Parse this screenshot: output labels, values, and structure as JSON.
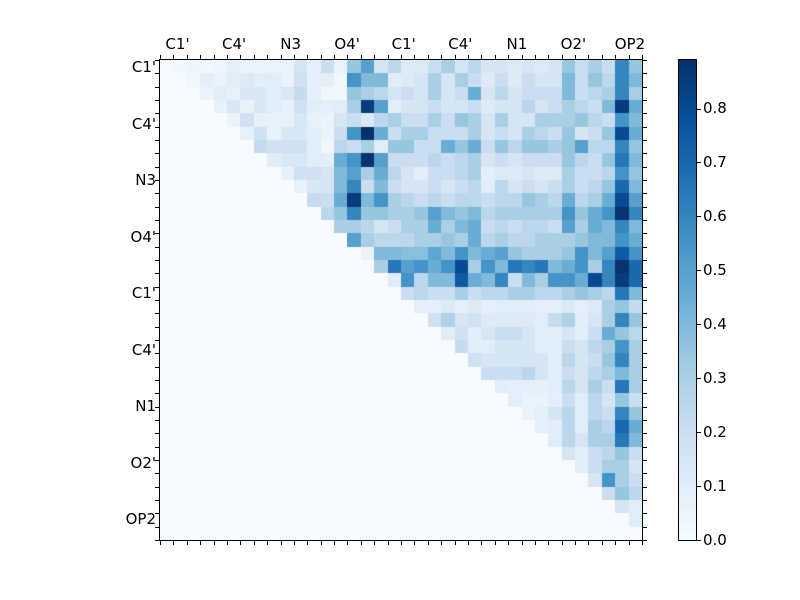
{
  "figure": {
    "background": "#ffffff",
    "kind": "matplotlib-style upper-triangular correlation heatmap with colorbar"
  },
  "chart_data": {
    "type": "heatmap",
    "title": "",
    "x_labels": [
      "C1'",
      "C4'",
      "N3",
      "O4'",
      "C1'",
      "C4'",
      "N1",
      "O2'",
      "OP2"
    ],
    "y_labels": [
      "C1'",
      "C4'",
      "N3",
      "O4'",
      "C1'",
      "C4'",
      "N1",
      "O2'",
      "OP2"
    ],
    "n_cells": 36,
    "cells_per_label": 4,
    "matrix_layout": "upper-triangular",
    "vmin": 0.0,
    "vmax": 0.89,
    "grid": false,
    "colormap": {
      "name": "Blues",
      "stops": [
        "#f7fbff",
        "#deebf7",
        "#c6dbef",
        "#9ecae1",
        "#6baed6",
        "#4292c6",
        "#2171b5",
        "#08519c",
        "#08306b"
      ]
    },
    "colorbar": {
      "position": "right",
      "tick_labels": [
        "0.0",
        "0.1",
        "0.2",
        "0.3",
        "0.4",
        "0.5",
        "0.6",
        "0.7",
        "0.8"
      ],
      "tick_values": [
        0.0,
        0.1,
        0.2,
        0.3,
        0.4,
        0.5,
        0.6,
        0.7,
        0.8
      ]
    },
    "values": [
      [
        0,
        0.02,
        0.04,
        0.03,
        0.04,
        0.08,
        0.06,
        0.05,
        0.06,
        0.06,
        0.15,
        0.08,
        0.2,
        0.05,
        0.35,
        0.5,
        0.15,
        0.25,
        0.12,
        0.12,
        0.2,
        0.3,
        0.15,
        0.25,
        0.15,
        0.15,
        0.12,
        0.15,
        0.12,
        0.15,
        0.35,
        0.2,
        0.3,
        0.2,
        0.6,
        0.35
      ],
      [
        0,
        0,
        0.03,
        0.08,
        0.06,
        0.1,
        0.12,
        0.1,
        0.1,
        0.06,
        0.18,
        0.08,
        0.08,
        0.03,
        0.55,
        0.4,
        0.4,
        0.1,
        0.12,
        0.15,
        0.3,
        0.15,
        0.3,
        0.2,
        0.12,
        0.2,
        0.12,
        0.2,
        0.15,
        0.15,
        0.4,
        0.2,
        0.35,
        0.25,
        0.6,
        0.4
      ],
      [
        0,
        0,
        0,
        0.05,
        0.1,
        0.07,
        0.14,
        0.14,
        0.1,
        0.14,
        0.22,
        0.08,
        0.03,
        0.03,
        0.35,
        0.3,
        0.25,
        0.15,
        0.2,
        0.15,
        0.3,
        0.15,
        0.2,
        0.45,
        0.15,
        0.25,
        0.15,
        0.2,
        0.2,
        0.2,
        0.4,
        0.2,
        0.25,
        0.3,
        0.6,
        0.3
      ],
      [
        0,
        0,
        0,
        0,
        0.07,
        0.14,
        0.07,
        0.14,
        0.1,
        0.07,
        0.18,
        0.1,
        0.08,
        0.1,
        0.3,
        0.85,
        0.5,
        0.1,
        0.15,
        0.15,
        0.2,
        0.15,
        0.15,
        0.2,
        0.12,
        0.15,
        0.15,
        0.25,
        0.15,
        0.2,
        0.3,
        0.25,
        0.2,
        0.4,
        0.85,
        0.45
      ],
      [
        0,
        0,
        0,
        0,
        0,
        0.05,
        0.18,
        0.07,
        0.07,
        0.07,
        0.14,
        0.07,
        0.05,
        0.15,
        0.2,
        0.12,
        0.25,
        0.3,
        0.2,
        0.2,
        0.3,
        0.2,
        0.35,
        0.3,
        0.15,
        0.3,
        0.15,
        0.15,
        0.3,
        0.3,
        0.3,
        0.35,
        0.25,
        0.2,
        0.55,
        0.4
      ],
      [
        0,
        0,
        0,
        0,
        0,
        0,
        0.07,
        0.18,
        0.07,
        0.14,
        0.14,
        0.1,
        0.05,
        0.2,
        0.55,
        0.9,
        0.45,
        0.2,
        0.3,
        0.3,
        0.2,
        0.2,
        0.2,
        0.3,
        0.15,
        0.2,
        0.15,
        0.3,
        0.25,
        0.2,
        0.35,
        0.15,
        0.2,
        0.35,
        0.8,
        0.45
      ],
      [
        0,
        0,
        0,
        0,
        0,
        0,
        0,
        0.22,
        0.18,
        0.18,
        0.18,
        0.1,
        0.03,
        0.25,
        0.2,
        0.3,
        0.1,
        0.35,
        0.35,
        0.2,
        0.2,
        0.45,
        0.35,
        0.45,
        0.2,
        0.35,
        0.25,
        0.35,
        0.35,
        0.3,
        0.35,
        0.5,
        0.25,
        0.25,
        0.6,
        0.35
      ],
      [
        0,
        0,
        0,
        0,
        0,
        0,
        0,
        0,
        0.1,
        0.14,
        0.14,
        0.1,
        0.08,
        0.45,
        0.55,
        0.88,
        0.5,
        0.2,
        0.2,
        0.2,
        0.25,
        0.2,
        0.25,
        0.3,
        0.15,
        0.2,
        0.15,
        0.2,
        0.2,
        0.2,
        0.35,
        0.25,
        0.2,
        0.35,
        0.65,
        0.4
      ],
      [
        0,
        0,
        0,
        0,
        0,
        0,
        0,
        0,
        0,
        0.07,
        0.18,
        0.18,
        0.15,
        0.4,
        0.5,
        0.3,
        0.45,
        0.25,
        0.15,
        0.1,
        0.2,
        0.2,
        0.25,
        0.3,
        0.1,
        0.12,
        0.12,
        0.15,
        0.12,
        0.12,
        0.3,
        0.2,
        0.2,
        0.25,
        0.55,
        0.35
      ],
      [
        0,
        0,
        0,
        0,
        0,
        0,
        0,
        0,
        0,
        0,
        0.07,
        0.14,
        0.15,
        0.4,
        0.6,
        0.2,
        0.4,
        0.2,
        0.15,
        0.15,
        0.2,
        0.15,
        0.2,
        0.25,
        0.1,
        0.25,
        0.15,
        0.2,
        0.15,
        0.2,
        0.3,
        0.2,
        0.25,
        0.35,
        0.7,
        0.4
      ],
      [
        0,
        0,
        0,
        0,
        0,
        0,
        0,
        0,
        0,
        0,
        0,
        0.22,
        0.2,
        0.45,
        0.85,
        0.4,
        0.55,
        0.3,
        0.25,
        0.2,
        0.25,
        0.2,
        0.25,
        0.25,
        0.2,
        0.25,
        0.25,
        0.35,
        0.3,
        0.25,
        0.45,
        0.25,
        0.3,
        0.45,
        0.8,
        0.5
      ],
      [
        0,
        0,
        0,
        0,
        0,
        0,
        0,
        0,
        0,
        0,
        0,
        0,
        0.25,
        0.35,
        0.6,
        0.35,
        0.35,
        0.3,
        0.3,
        0.35,
        0.5,
        0.4,
        0.35,
        0.4,
        0.25,
        0.3,
        0.3,
        0.3,
        0.3,
        0.3,
        0.55,
        0.35,
        0.45,
        0.55,
        0.88,
        0.6
      ],
      [
        0,
        0,
        0,
        0,
        0,
        0,
        0,
        0,
        0,
        0,
        0,
        0,
        0,
        0.3,
        0.3,
        0.25,
        0.15,
        0.2,
        0.3,
        0.3,
        0.45,
        0.3,
        0.4,
        0.45,
        0.2,
        0.25,
        0.2,
        0.25,
        0.25,
        0.2,
        0.5,
        0.3,
        0.45,
        0.4,
        0.6,
        0.4
      ],
      [
        0,
        0,
        0,
        0,
        0,
        0,
        0,
        0,
        0,
        0,
        0,
        0,
        0,
        0,
        0.5,
        0.3,
        0.25,
        0.25,
        0.25,
        0.3,
        0.3,
        0.35,
        0.3,
        0.45,
        0.25,
        0.3,
        0.25,
        0.25,
        0.3,
        0.3,
        0.3,
        0.35,
        0.4,
        0.4,
        0.55,
        0.45
      ],
      [
        0,
        0,
        0,
        0,
        0,
        0,
        0,
        0,
        0,
        0,
        0,
        0,
        0,
        0,
        0,
        0.05,
        0.4,
        0.4,
        0.38,
        0.38,
        0.48,
        0.4,
        0.55,
        0.4,
        0.45,
        0.5,
        0.35,
        0.3,
        0.3,
        0.3,
        0.35,
        0.55,
        0.4,
        0.5,
        0.75,
        0.55
      ],
      [
        0,
        0,
        0,
        0,
        0,
        0,
        0,
        0,
        0,
        0,
        0,
        0,
        0,
        0,
        0,
        0,
        0.3,
        0.65,
        0.5,
        0.55,
        0.45,
        0.55,
        0.8,
        0.3,
        0.55,
        0.4,
        0.65,
        0.6,
        0.65,
        0.4,
        0.45,
        0.55,
        0.3,
        0.6,
        0.88,
        0.7
      ],
      [
        0,
        0,
        0,
        0,
        0,
        0,
        0,
        0,
        0,
        0,
        0,
        0,
        0,
        0,
        0,
        0,
        0,
        0.1,
        0.55,
        0.25,
        0.4,
        0.4,
        0.75,
        0.45,
        0.4,
        0.6,
        0.2,
        0.4,
        0.3,
        0.55,
        0.55,
        0.45,
        0.8,
        0.6,
        0.85,
        0.7
      ],
      [
        0,
        0,
        0,
        0,
        0,
        0,
        0,
        0,
        0,
        0,
        0,
        0,
        0,
        0,
        0,
        0,
        0,
        0,
        0.2,
        0.25,
        0.2,
        0.2,
        0.3,
        0.2,
        0.25,
        0.25,
        0.3,
        0.3,
        0.25,
        0.25,
        0.3,
        0.35,
        0.3,
        0.25,
        0.65,
        0.4
      ],
      [
        0,
        0,
        0,
        0,
        0,
        0,
        0,
        0,
        0,
        0,
        0,
        0,
        0,
        0,
        0,
        0,
        0,
        0,
        0,
        0.08,
        0.08,
        0.12,
        0.08,
        0.12,
        0.08,
        0.1,
        0.1,
        0.1,
        0.08,
        0.08,
        0.12,
        0.08,
        0.12,
        0.3,
        0.35,
        0.22
      ],
      [
        0,
        0,
        0,
        0,
        0,
        0,
        0,
        0,
        0,
        0,
        0,
        0,
        0,
        0,
        0,
        0,
        0,
        0,
        0,
        0,
        0.18,
        0.28,
        0.15,
        0.18,
        0.12,
        0.12,
        0.12,
        0.12,
        0.1,
        0.22,
        0.28,
        0.1,
        0.15,
        0.3,
        0.6,
        0.35
      ],
      [
        0,
        0,
        0,
        0,
        0,
        0,
        0,
        0,
        0,
        0,
        0,
        0,
        0,
        0,
        0,
        0,
        0,
        0,
        0,
        0,
        0,
        0.1,
        0.18,
        0.1,
        0.15,
        0.2,
        0.2,
        0.15,
        0.1,
        0.1,
        0.15,
        0.1,
        0.2,
        0.45,
        0.35,
        0.25
      ],
      [
        0,
        0,
        0,
        0,
        0,
        0,
        0,
        0,
        0,
        0,
        0,
        0,
        0,
        0,
        0,
        0,
        0,
        0,
        0,
        0,
        0,
        0,
        0.22,
        0.1,
        0.1,
        0.15,
        0.15,
        0.15,
        0.1,
        0.1,
        0.2,
        0.15,
        0.25,
        0.3,
        0.55,
        0.3
      ],
      [
        0,
        0,
        0,
        0,
        0,
        0,
        0,
        0,
        0,
        0,
        0,
        0,
        0,
        0,
        0,
        0,
        0,
        0,
        0,
        0,
        0,
        0,
        0,
        0.18,
        0.15,
        0.15,
        0.15,
        0.15,
        0.15,
        0.1,
        0.25,
        0.15,
        0.2,
        0.35,
        0.6,
        0.3
      ],
      [
        0,
        0,
        0,
        0,
        0,
        0,
        0,
        0,
        0,
        0,
        0,
        0,
        0,
        0,
        0,
        0,
        0,
        0,
        0,
        0,
        0,
        0,
        0,
        0,
        0.2,
        0.2,
        0.2,
        0.25,
        0.15,
        0.1,
        0.2,
        0.15,
        0.25,
        0.3,
        0.4,
        0.3
      ],
      [
        0,
        0,
        0,
        0,
        0,
        0,
        0,
        0,
        0,
        0,
        0,
        0,
        0,
        0,
        0,
        0,
        0,
        0,
        0,
        0,
        0,
        0,
        0,
        0,
        0,
        0.1,
        0.08,
        0.08,
        0.08,
        0.1,
        0.25,
        0.15,
        0.3,
        0.2,
        0.65,
        0.3
      ],
      [
        0,
        0,
        0,
        0,
        0,
        0,
        0,
        0,
        0,
        0,
        0,
        0,
        0,
        0,
        0,
        0,
        0,
        0,
        0,
        0,
        0,
        0,
        0,
        0,
        0,
        0,
        0.08,
        0.05,
        0.05,
        0.08,
        0.2,
        0.1,
        0.25,
        0.15,
        0.35,
        0.2
      ],
      [
        0,
        0,
        0,
        0,
        0,
        0,
        0,
        0,
        0,
        0,
        0,
        0,
        0,
        0,
        0,
        0,
        0,
        0,
        0,
        0,
        0,
        0,
        0,
        0,
        0,
        0,
        0,
        0.05,
        0.08,
        0.15,
        0.25,
        0.1,
        0.25,
        0.2,
        0.6,
        0.35
      ],
      [
        0,
        0,
        0,
        0,
        0,
        0,
        0,
        0,
        0,
        0,
        0,
        0,
        0,
        0,
        0,
        0,
        0,
        0,
        0,
        0,
        0,
        0,
        0,
        0,
        0,
        0,
        0,
        0,
        0.08,
        0.1,
        0.25,
        0.1,
        0.3,
        0.25,
        0.7,
        0.45
      ],
      [
        0,
        0,
        0,
        0,
        0,
        0,
        0,
        0,
        0,
        0,
        0,
        0,
        0,
        0,
        0,
        0,
        0,
        0,
        0,
        0,
        0,
        0,
        0,
        0,
        0,
        0,
        0,
        0,
        0,
        0.1,
        0.25,
        0.15,
        0.3,
        0.3,
        0.65,
        0.4
      ],
      [
        0,
        0,
        0,
        0,
        0,
        0,
        0,
        0,
        0,
        0,
        0,
        0,
        0,
        0,
        0,
        0,
        0,
        0,
        0,
        0,
        0,
        0,
        0,
        0,
        0,
        0,
        0,
        0,
        0,
        0,
        0.15,
        0.1,
        0.2,
        0.25,
        0.35,
        0.2
      ],
      [
        0,
        0,
        0,
        0,
        0,
        0,
        0,
        0,
        0,
        0,
        0,
        0,
        0,
        0,
        0,
        0,
        0,
        0,
        0,
        0,
        0,
        0,
        0,
        0,
        0,
        0,
        0,
        0,
        0,
        0,
        0,
        0.1,
        0.2,
        0.3,
        0.3,
        0.15
      ],
      [
        0,
        0,
        0,
        0,
        0,
        0,
        0,
        0,
        0,
        0,
        0,
        0,
        0,
        0,
        0,
        0,
        0,
        0,
        0,
        0,
        0,
        0,
        0,
        0,
        0,
        0,
        0,
        0,
        0,
        0,
        0,
        0,
        0.15,
        0.55,
        0.3,
        0.2
      ],
      [
        0,
        0,
        0,
        0,
        0,
        0,
        0,
        0,
        0,
        0,
        0,
        0,
        0,
        0,
        0,
        0,
        0,
        0,
        0,
        0,
        0,
        0,
        0,
        0,
        0,
        0,
        0,
        0,
        0,
        0,
        0,
        0,
        0,
        0.2,
        0.35,
        0.25
      ],
      [
        0,
        0,
        0,
        0,
        0,
        0,
        0,
        0,
        0,
        0,
        0,
        0,
        0,
        0,
        0,
        0,
        0,
        0,
        0,
        0,
        0,
        0,
        0,
        0,
        0,
        0,
        0,
        0,
        0,
        0,
        0,
        0,
        0,
        0,
        0.15,
        0.1
      ],
      [
        0,
        0,
        0,
        0,
        0,
        0,
        0,
        0,
        0,
        0,
        0,
        0,
        0,
        0,
        0,
        0,
        0,
        0,
        0,
        0,
        0,
        0,
        0,
        0,
        0,
        0,
        0,
        0,
        0,
        0,
        0,
        0,
        0,
        0,
        0,
        0.1
      ],
      [
        0,
        0,
        0,
        0,
        0,
        0,
        0,
        0,
        0,
        0,
        0,
        0,
        0,
        0,
        0,
        0,
        0,
        0,
        0,
        0,
        0,
        0,
        0,
        0,
        0,
        0,
        0,
        0,
        0,
        0,
        0,
        0,
        0,
        0,
        0,
        0
      ]
    ]
  }
}
